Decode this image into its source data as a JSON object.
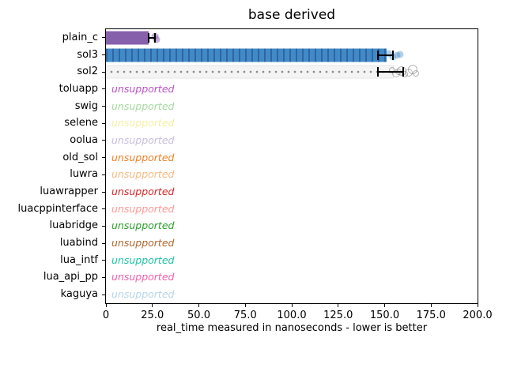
{
  "chart_data": {
    "type": "bar",
    "orientation": "horizontal",
    "title": "base derived",
    "xlabel": "real_time measured in nanoseconds - lower is better",
    "xlim": [
      0,
      200
    ],
    "grid": false,
    "legend": "none",
    "x_ticks": [
      {
        "label": "0",
        "value": 0
      },
      {
        "label": "25.0",
        "value": 25
      },
      {
        "label": "50.0",
        "value": 50
      },
      {
        "label": "75.0",
        "value": 75
      },
      {
        "label": "100.0",
        "value": 100
      },
      {
        "label": "125.0",
        "value": 125
      },
      {
        "label": "150.0",
        "value": 150
      },
      {
        "label": "175.0",
        "value": 175
      },
      {
        "label": "200.0",
        "value": 200
      }
    ],
    "categories": [
      "plain_c",
      "sol3",
      "sol2",
      "toluapp",
      "swig",
      "selene",
      "oolua",
      "old_sol",
      "luwra",
      "luawrapper",
      "luacppinterface",
      "luabridge",
      "luabind",
      "lua_intf",
      "lua_api_pp",
      "kaguya"
    ],
    "error_bar_color": "#000000",
    "bars": [
      {
        "category": "plain_c",
        "value": 23,
        "error_low": 22.5,
        "error_high": 26.7,
        "points": [
          26.3,
          27.4
        ],
        "color": "#8760ab",
        "hatch": "none",
        "hatch_color": "#8760ab",
        "point_fill": "rgba(135,96,171,0.5)",
        "point_stroke": ""
      },
      {
        "category": "sol3",
        "value": 151,
        "error_low": 146,
        "error_high": 155,
        "points": [
          152.5,
          154.5,
          156.5,
          158.5
        ],
        "color": "#4289c8",
        "hatch": "vertical",
        "hatch_color": "#2e66a0",
        "point_fill": "rgba(66,137,200,0.4)",
        "point_stroke": ""
      },
      {
        "category": "sol2",
        "value": 155,
        "error_low": 146,
        "error_high": 160.5,
        "points": [
          154,
          156,
          157.5,
          159,
          161,
          163,
          165,
          167
        ],
        "color": "#f4f4f4",
        "hatch": "dots",
        "hatch_color": "#8c8c8c",
        "point_fill": "",
        "point_stroke": "rgba(130,130,130,0.6)"
      }
    ],
    "unsupported": [
      {
        "category": "toluapp",
        "label": "unsupported",
        "color": "#bc53c6"
      },
      {
        "category": "swig",
        "label": "unsupported",
        "color": "#a5d99f"
      },
      {
        "category": "selene",
        "label": "unsupported",
        "color": "#f5f0a2"
      },
      {
        "category": "oolua",
        "label": "unsupported",
        "color": "#c7bfdd"
      },
      {
        "category": "old_sol",
        "label": "unsupported",
        "color": "#ee8227"
      },
      {
        "category": "luwra",
        "label": "unsupported",
        "color": "#f8ba7f"
      },
      {
        "category": "luawrapper",
        "label": "unsupported",
        "color": "#d62728"
      },
      {
        "category": "luacppinterface",
        "label": "unsupported",
        "color": "#ff9896"
      },
      {
        "category": "luabridge",
        "label": "unsupported",
        "color": "#2ca02c"
      },
      {
        "category": "luabind",
        "label": "unsupported",
        "color": "#b0662c"
      },
      {
        "category": "lua_intf",
        "label": "unsupported",
        "color": "#1ec3a8"
      },
      {
        "category": "lua_api_pp",
        "label": "unsupported",
        "color": "#ee5fac"
      },
      {
        "category": "kaguya",
        "label": "unsupported",
        "color": "#b7d5e8"
      }
    ]
  }
}
